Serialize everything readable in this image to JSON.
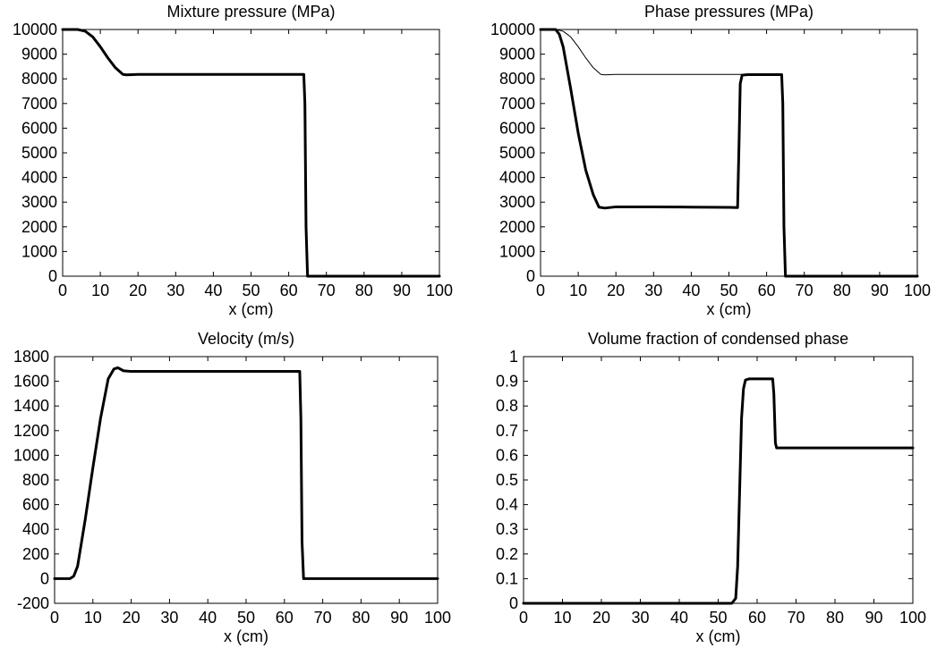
{
  "chart_data": [
    {
      "type": "line",
      "title": "Mixture pressure (MPa)",
      "xlabel": "x (cm)",
      "ylabel": "",
      "xlim": [
        0,
        100
      ],
      "ylim": [
        0,
        10000
      ],
      "xticks": [
        "0",
        "10",
        "20",
        "30",
        "40",
        "50",
        "60",
        "70",
        "80",
        "90",
        "100"
      ],
      "yticks": [
        "0",
        "1000",
        "2000",
        "3000",
        "4000",
        "5000",
        "6000",
        "7000",
        "8000",
        "9000",
        "10000"
      ],
      "grid": false,
      "series": [
        {
          "style": "thick",
          "x": [
            0,
            4,
            6,
            8,
            10,
            12,
            14,
            16,
            17,
            20,
            30,
            40,
            50,
            60,
            64,
            64.3,
            64.6,
            65,
            70,
            80,
            90,
            100
          ],
          "y": [
            10000,
            10000,
            9930,
            9700,
            9300,
            8850,
            8450,
            8180,
            8160,
            8180,
            8180,
            8180,
            8180,
            8180,
            8180,
            7000,
            2000,
            0,
            0,
            0,
            0,
            0
          ]
        }
      ]
    },
    {
      "type": "line",
      "title": "Phase pressures (MPa)",
      "xlabel": "x (cm)",
      "ylabel": "",
      "xlim": [
        0,
        100
      ],
      "ylim": [
        0,
        10000
      ],
      "xticks": [
        "0",
        "10",
        "20",
        "30",
        "40",
        "50",
        "60",
        "70",
        "80",
        "90",
        "100"
      ],
      "yticks": [
        "0",
        "1000",
        "2000",
        "3000",
        "4000",
        "5000",
        "6000",
        "7000",
        "8000",
        "9000",
        "10000"
      ],
      "grid": false,
      "series": [
        {
          "style": "thin",
          "x": [
            0,
            4,
            6,
            8,
            10,
            12,
            14,
            16,
            17,
            20,
            30,
            40,
            50,
            60,
            64,
            64.3,
            64.6,
            65,
            70,
            80,
            90,
            100
          ],
          "y": [
            10000,
            10000,
            9930,
            9700,
            9300,
            8850,
            8450,
            8180,
            8160,
            8180,
            8180,
            8180,
            8180,
            8180,
            8180,
            7000,
            2000,
            0,
            0,
            0,
            0,
            0
          ]
        },
        {
          "style": "thick",
          "x": [
            0,
            4,
            5,
            6,
            8,
            10,
            12,
            14,
            15.5,
            17,
            20,
            30,
            40,
            50,
            52.3,
            52.7,
            53,
            53.5,
            55,
            60,
            64,
            64.3,
            64.6,
            65,
            70,
            80,
            90,
            100
          ],
          "y": [
            10000,
            10000,
            9800,
            9300,
            7600,
            5800,
            4300,
            3300,
            2800,
            2760,
            2810,
            2810,
            2800,
            2790,
            2780,
            5500,
            7800,
            8150,
            8170,
            8170,
            8170,
            7000,
            2000,
            0,
            0,
            0,
            0,
            0
          ]
        }
      ]
    },
    {
      "type": "line",
      "title": "Velocity (m/s)",
      "xlabel": "x (cm)",
      "ylabel": "",
      "xlim": [
        0,
        100
      ],
      "ylim": [
        -200,
        1800
      ],
      "xticks": [
        "0",
        "10",
        "20",
        "30",
        "40",
        "50",
        "60",
        "70",
        "80",
        "90",
        "100"
      ],
      "yticks": [
        "-200",
        "0",
        "200",
        "400",
        "600",
        "800",
        "1000",
        "1200",
        "1400",
        "1600",
        "1800"
      ],
      "grid": false,
      "series": [
        {
          "style": "thick",
          "x": [
            0,
            4,
            5,
            6,
            8,
            10,
            12,
            14,
            15.5,
            16.5,
            18,
            20,
            30,
            40,
            50,
            60,
            64,
            64.3,
            64.6,
            65,
            70,
            80,
            90,
            100
          ],
          "y": [
            0,
            0,
            20,
            100,
            480,
            900,
            1300,
            1620,
            1700,
            1710,
            1685,
            1680,
            1680,
            1680,
            1680,
            1680,
            1680,
            1300,
            300,
            0,
            0,
            0,
            0,
            0
          ]
        }
      ]
    },
    {
      "type": "line",
      "title": "Volume fraction of condensed phase",
      "xlabel": "x (cm)",
      "ylabel": "",
      "xlim": [
        0,
        100
      ],
      "ylim": [
        0,
        1
      ],
      "xticks": [
        "0",
        "10",
        "20",
        "30",
        "40",
        "50",
        "60",
        "70",
        "80",
        "90",
        "100"
      ],
      "yticks": [
        "0",
        "0.1",
        "0.2",
        "0.3",
        "0.4",
        "0.5",
        "0.6",
        "0.7",
        "0.8",
        "0.9",
        "1"
      ],
      "grid": false,
      "series": [
        {
          "style": "thick",
          "x": [
            0,
            10,
            20,
            30,
            40,
            50,
            52.5,
            53.5,
            54.5,
            55,
            55.5,
            56,
            56.5,
            57,
            58,
            60,
            64,
            64.3,
            64.7,
            65,
            70,
            80,
            90,
            100
          ],
          "y": [
            0,
            0,
            0,
            0,
            0,
            0,
            0,
            0,
            0.02,
            0.15,
            0.45,
            0.75,
            0.87,
            0.905,
            0.91,
            0.91,
            0.91,
            0.85,
            0.65,
            0.63,
            0.63,
            0.63,
            0.63,
            0.63
          ]
        }
      ]
    }
  ]
}
